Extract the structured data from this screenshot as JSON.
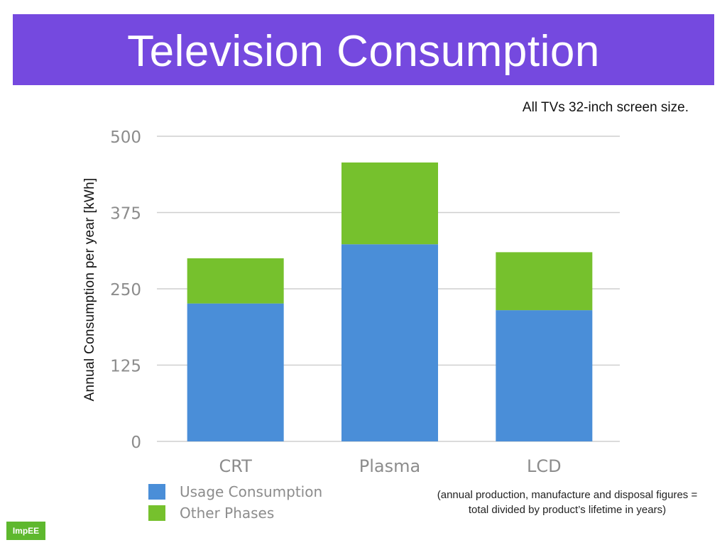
{
  "slide": {
    "title": "Television Consumption",
    "subtitle": "All TVs 32-inch screen size.",
    "footnote_line1": "(annual production, manufacture and disposal figures =",
    "footnote_line2": "total divided by product’s lifetime in years)",
    "logo_text": "ImpEE",
    "banner_color": "#7549df"
  },
  "chart_data": {
    "type": "bar",
    "stacked": true,
    "categories": [
      "CRT",
      "Plasma",
      "LCD"
    ],
    "series": [
      {
        "name": "Usage Consumption",
        "color": "#4a8ed8",
        "values": [
          226,
          323,
          215
        ]
      },
      {
        "name": "Other Phases",
        "color": "#76c12d",
        "values": [
          74,
          134,
          95
        ]
      }
    ],
    "ylabel": "Annual Consumption per year [kWh]",
    "ylim": [
      0,
      500
    ],
    "yticks": [
      0,
      125,
      250,
      375,
      500
    ],
    "grid": true,
    "legend": "bottom-left"
  }
}
